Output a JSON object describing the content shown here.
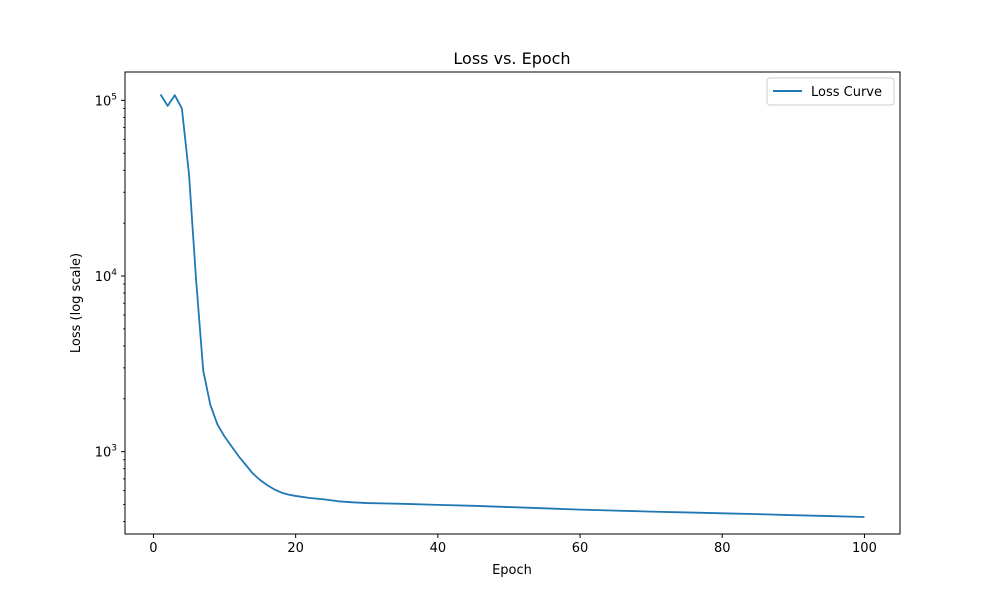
{
  "chart_data": {
    "type": "line",
    "title": "Loss vs. Epoch",
    "xlabel": "Epoch",
    "ylabel": "Loss (log scale)",
    "yscale": "log",
    "xlim": [
      -4,
      105
    ],
    "ylim": [
      340,
      145000
    ],
    "x_ticks": [
      0,
      20,
      40,
      60,
      80,
      100
    ],
    "y_ticks": [
      {
        "value": 100000,
        "base": "10",
        "exp": "5"
      },
      {
        "value": 10000,
        "base": "10",
        "exp": "4"
      },
      {
        "value": 1000,
        "base": "10",
        "exp": "3"
      }
    ],
    "grid": false,
    "legend": {
      "placement": "top-right",
      "entries": [
        "Loss Curve"
      ]
    },
    "colors": {
      "series": "#1f77b4"
    },
    "series": [
      {
        "name": "Loss Curve",
        "x": [
          1,
          2,
          3,
          4,
          5,
          6,
          7,
          8,
          9,
          10,
          11,
          12,
          13,
          14,
          15,
          16,
          17,
          18,
          19,
          20,
          22,
          24,
          26,
          28,
          30,
          35,
          40,
          45,
          50,
          55,
          60,
          65,
          70,
          75,
          80,
          85,
          90,
          95,
          100
        ],
        "y": [
          108000,
          93000,
          107000,
          90000,
          38000,
          9500,
          2900,
          1850,
          1430,
          1220,
          1070,
          940,
          840,
          750,
          690,
          645,
          610,
          585,
          570,
          560,
          545,
          535,
          522,
          515,
          510,
          505,
          498,
          492,
          484,
          476,
          468,
          462,
          456,
          451,
          446,
          441,
          435,
          430,
          425
        ]
      }
    ]
  }
}
